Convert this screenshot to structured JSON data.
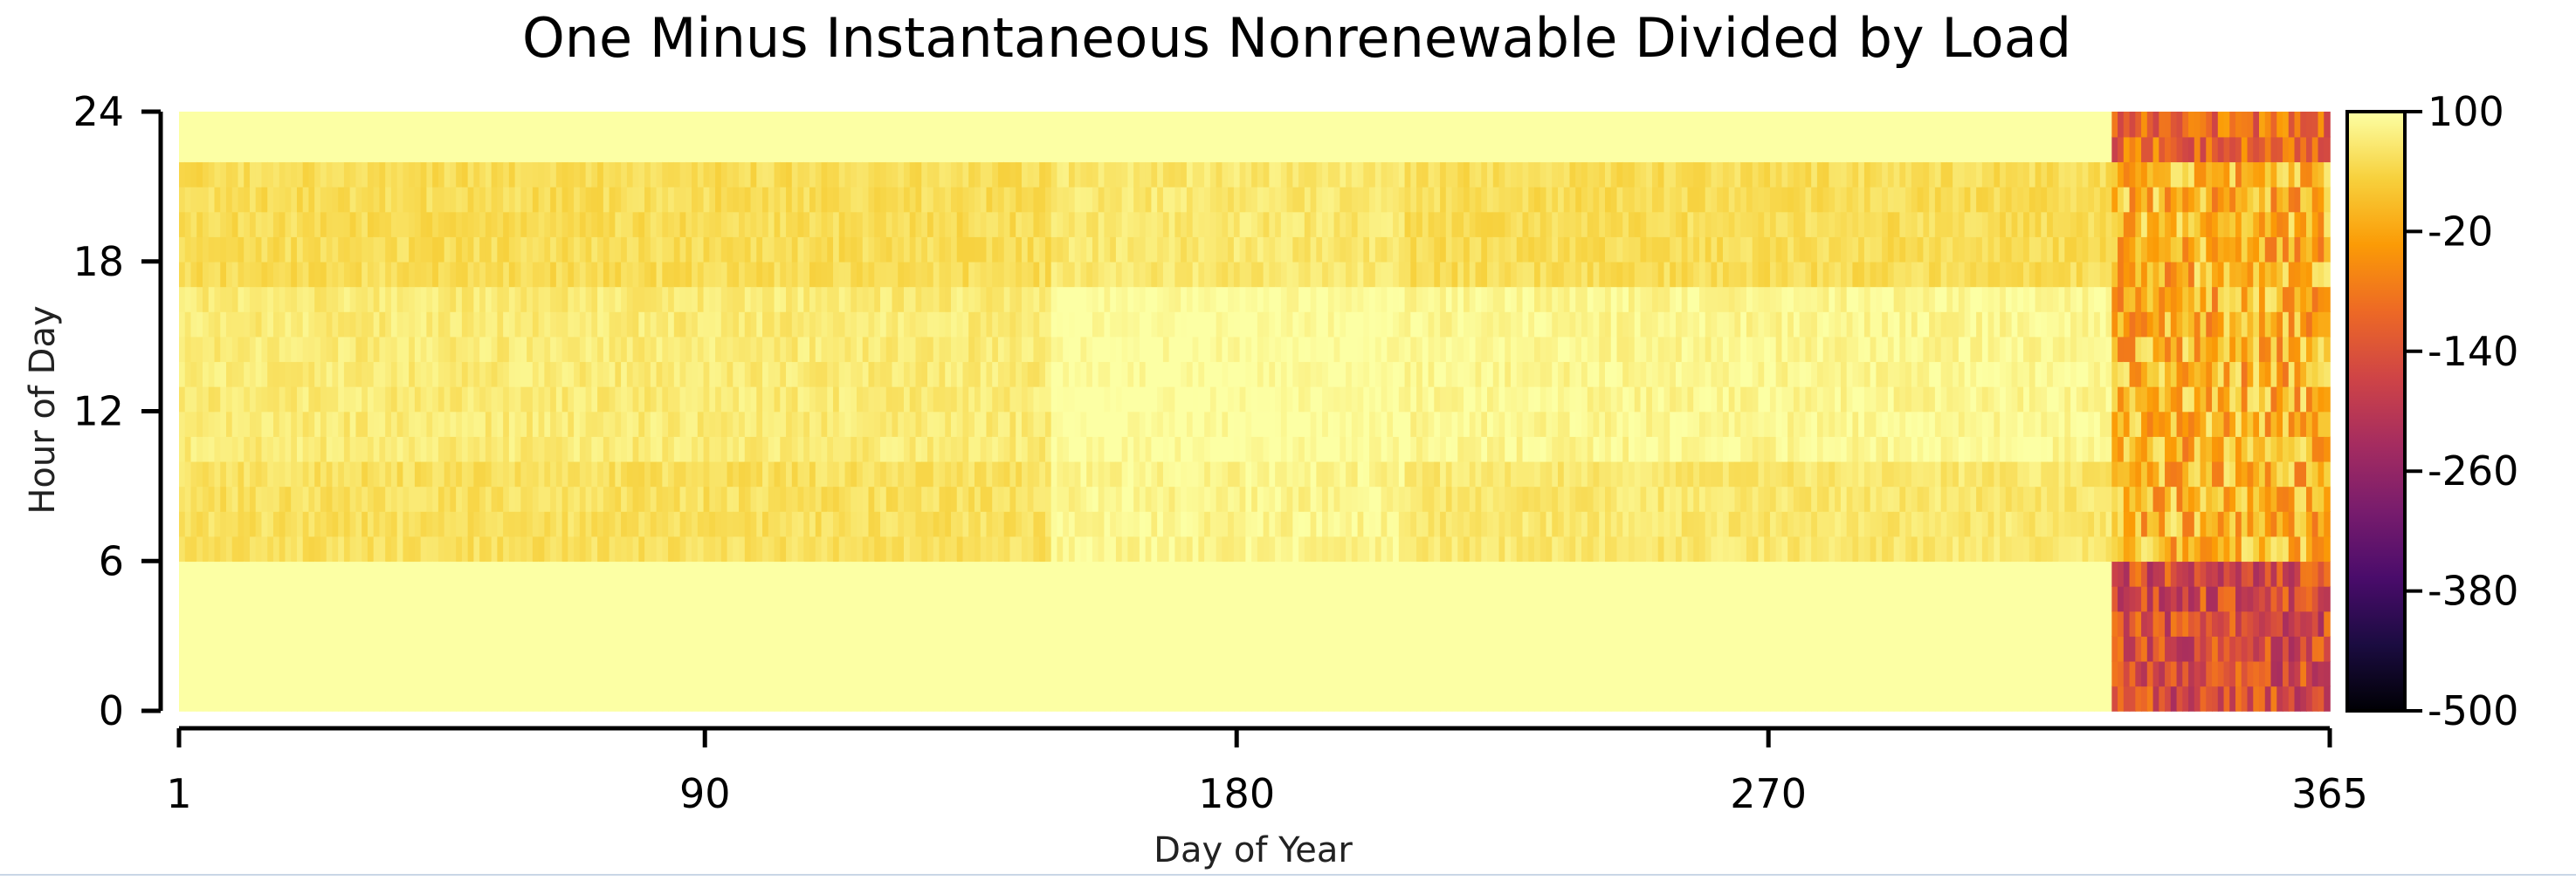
{
  "chart_data": {
    "type": "heatmap",
    "title": "One Minus Instantaneous Nonrenewable Divided by Load",
    "xlabel": "Day of Year",
    "ylabel": "Hour of Day",
    "xlim": [
      1,
      365
    ],
    "ylim": [
      0,
      24
    ],
    "x_ticks": [
      1,
      90,
      180,
      270,
      365
    ],
    "y_ticks": [
      0,
      6,
      12,
      18,
      24
    ],
    "grid": false,
    "colorbar": {
      "placement": "right",
      "range": [
        -500,
        100
      ],
      "ticks": [
        100,
        -20,
        -140,
        -260,
        -380,
        -500
      ],
      "colormap": [
        "#000004",
        "#1b0c41",
        "#4a0c6b",
        "#781c6d",
        "#a52c60",
        "#cf4446",
        "#ed6925",
        "#fb9b06",
        "#f7d13d",
        "#fcffa4"
      ]
    },
    "regions": [
      {
        "days": [
          1,
          148
        ],
        "hours": [
          0,
          6
        ],
        "value": 100
      },
      {
        "days": [
          1,
          148
        ],
        "hours": [
          6,
          10
        ],
        "value": 55
      },
      {
        "days": [
          1,
          148
        ],
        "hours": [
          10,
          17
        ],
        "value": 70
      },
      {
        "days": [
          1,
          148
        ],
        "hours": [
          17,
          22
        ],
        "value": 50
      },
      {
        "days": [
          1,
          148
        ],
        "hours": [
          22,
          24
        ],
        "value": 100
      },
      {
        "days": [
          149,
          208
        ],
        "hours": [
          0,
          6
        ],
        "value": 100
      },
      {
        "days": [
          149,
          208
        ],
        "hours": [
          6,
          10
        ],
        "value": 85
      },
      {
        "days": [
          149,
          208
        ],
        "hours": [
          10,
          17
        ],
        "value": 98
      },
      {
        "days": [
          149,
          208
        ],
        "hours": [
          17,
          22
        ],
        "value": 65
      },
      {
        "days": [
          149,
          208
        ],
        "hours": [
          22,
          24
        ],
        "value": 100
      },
      {
        "days": [
          209,
          328
        ],
        "hours": [
          0,
          6
        ],
        "value": 100
      },
      {
        "days": [
          209,
          328
        ],
        "hours": [
          6,
          10
        ],
        "value": 65
      },
      {
        "days": [
          209,
          328
        ],
        "hours": [
          10,
          17
        ],
        "value": 88
      },
      {
        "days": [
          209,
          328
        ],
        "hours": [
          17,
          22
        ],
        "value": 50
      },
      {
        "days": [
          209,
          328
        ],
        "hours": [
          22,
          24
        ],
        "value": 100
      },
      {
        "days": [
          329,
          365
        ],
        "hours": [
          0,
          6
        ],
        "value": -150
      },
      {
        "days": [
          329,
          365
        ],
        "hours": [
          6,
          22
        ],
        "value": -5
      },
      {
        "days": [
          329,
          365
        ],
        "hours": [
          22,
          24
        ],
        "value": -100
      }
    ]
  }
}
